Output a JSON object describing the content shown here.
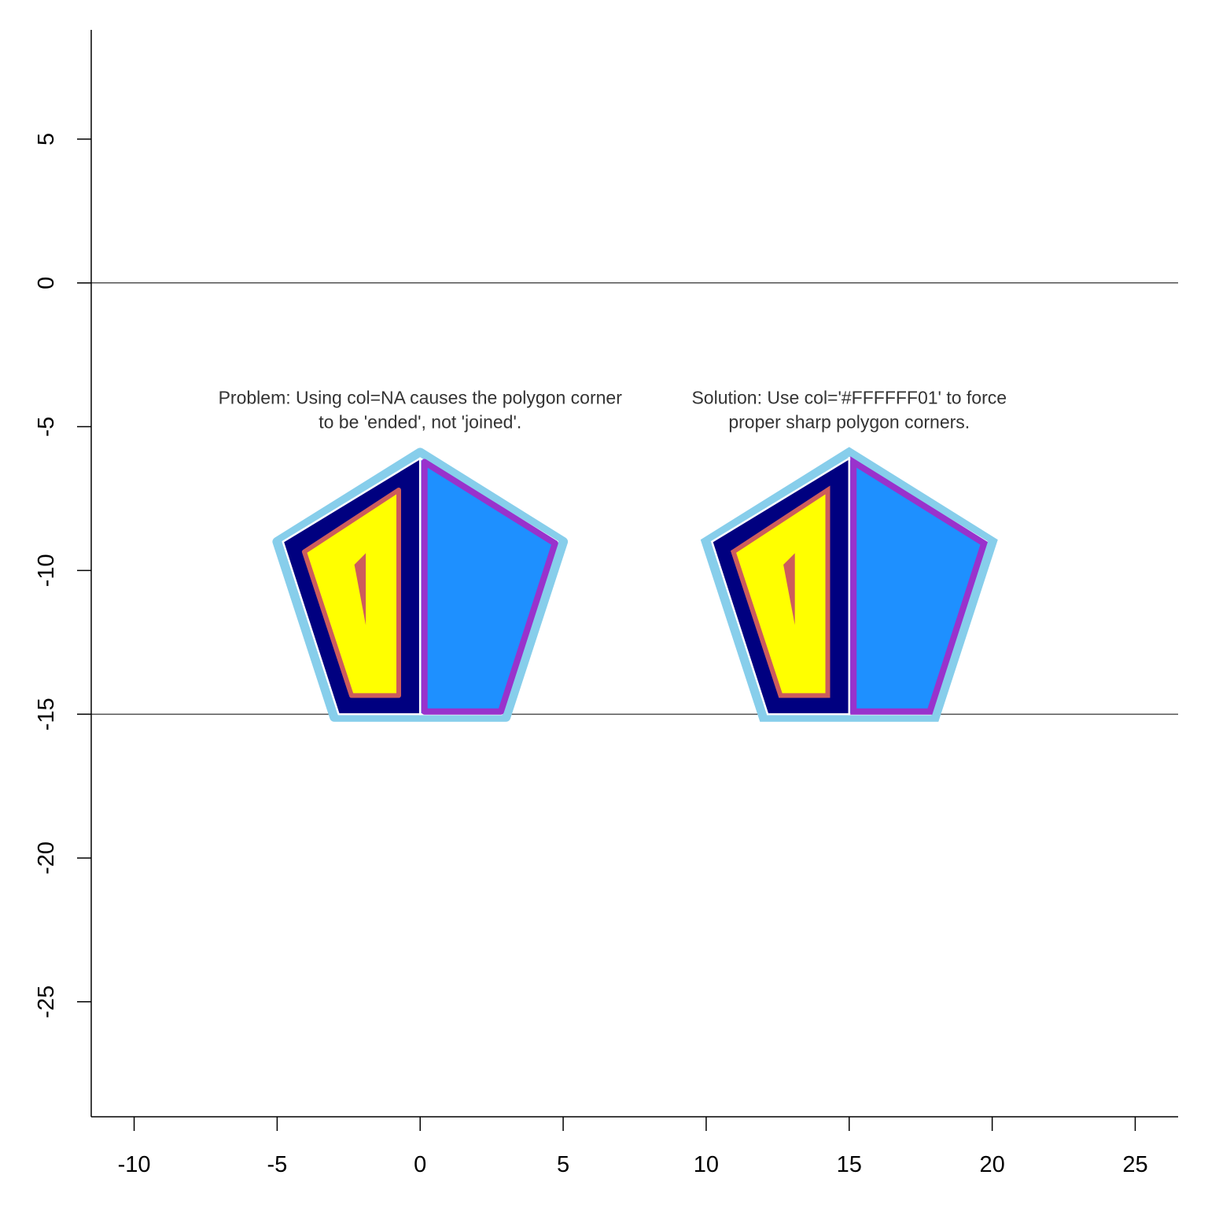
{
  "chart_data": {
    "type": "polygon-diagram",
    "xlim": [
      -11.5,
      26.5
    ],
    "ylim": [
      -29,
      8.8
    ],
    "x_ticks": [
      -10,
      -5,
      0,
      5,
      10,
      15,
      20,
      25
    ],
    "y_ticks": [
      5,
      0,
      -5,
      -10,
      -15,
      -20,
      -25
    ],
    "x_tick_labels": [
      "-10",
      "-5",
      "0",
      "5",
      "10",
      "15",
      "20",
      "25"
    ],
    "y_tick_labels": [
      "5",
      "0",
      "-5",
      "-10",
      "-15",
      "-20",
      "-25"
    ],
    "hlines": [
      0,
      -15
    ],
    "colors": {
      "outer_border": "#87CEEB",
      "left_fill": "#000080",
      "right_fill": "#1E90FF",
      "right_border": "#9932CC",
      "inner_fill": "#FFFF00",
      "inner_border": "#CD5C5C",
      "divider": "#FFFFFF"
    },
    "panels": [
      {
        "name": "problem",
        "annotation": [
          "Problem: Using col=NA causes the polygon corner",
          "to be 'ended', not 'joined'."
        ],
        "annotation_pos": [
          0,
          -4.2
        ],
        "corner_join": "round",
        "outer": [
          [
            0,
            -5.9
          ],
          [
            -5,
            -9
          ],
          [
            -3,
            -15.1
          ],
          [
            3,
            -15.1
          ],
          [
            5,
            -9
          ]
        ],
        "left": [
          [
            0,
            -6.1
          ],
          [
            -4.8,
            -9
          ],
          [
            -2.85,
            -15
          ],
          [
            0,
            -15
          ]
        ],
        "right": [
          [
            0,
            -6.1
          ],
          [
            4.8,
            -9
          ],
          [
            2.85,
            -15
          ],
          [
            0,
            -15
          ]
        ],
        "inner": [
          [
            -0.75,
            -7.2
          ],
          [
            -4.05,
            -9.35
          ],
          [
            -2.4,
            -14.35
          ],
          [
            -0.75,
            -14.35
          ]
        ],
        "hole": [
          [
            -2.3,
            -9.8
          ],
          [
            -1.9,
            -9.4
          ],
          [
            -1.9,
            -11.9
          ]
        ]
      },
      {
        "name": "solution",
        "annotation": [
          "Solution: Use col='#FFFFFF01' to force",
          "proper sharp polygon corners."
        ],
        "annotation_pos": [
          15,
          -4.2
        ],
        "corner_join": "miter",
        "outer": [
          [
            15,
            -5.9
          ],
          [
            10,
            -9
          ],
          [
            12,
            -15.1
          ],
          [
            18,
            -15.1
          ],
          [
            20,
            -9
          ]
        ],
        "left": [
          [
            15,
            -6.1
          ],
          [
            10.2,
            -9
          ],
          [
            12.15,
            -15
          ],
          [
            15,
            -15
          ]
        ],
        "right": [
          [
            15,
            -6.1
          ],
          [
            19.8,
            -9
          ],
          [
            17.85,
            -15
          ],
          [
            15,
            -15
          ]
        ],
        "inner": [
          [
            14.25,
            -7.2
          ],
          [
            10.95,
            -9.35
          ],
          [
            12.6,
            -14.35
          ],
          [
            14.25,
            -14.35
          ]
        ],
        "hole": [
          [
            12.7,
            -9.8
          ],
          [
            13.1,
            -9.4
          ],
          [
            13.1,
            -11.9
          ]
        ]
      }
    ]
  }
}
